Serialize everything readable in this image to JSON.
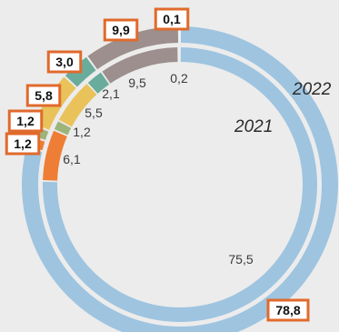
{
  "chart_data": {
    "type": "donut",
    "categories": [
      "blue",
      "orange",
      "olive-green",
      "yellow",
      "teal",
      "gray",
      "white"
    ],
    "series": [
      {
        "name": "2022",
        "values": [
          78.8,
          1.2,
          1.2,
          5.8,
          3.0,
          9.9,
          0.1
        ],
        "labels": [
          "78,8",
          "1,2",
          "1,2",
          "5,8",
          "3,0",
          "9,9",
          "0,1"
        ]
      },
      {
        "name": "2021",
        "values": [
          75.5,
          6.1,
          1.2,
          5.5,
          2.1,
          9.5,
          0.2
        ],
        "labels": [
          "75,5",
          "6,1",
          "1,2",
          "5,5",
          "2,1",
          "9,5",
          "0,2"
        ]
      }
    ],
    "colors": [
      "#9ec4e0",
      "#ee7e35",
      "#9db47b",
      "#e9c25a",
      "#6aac9c",
      "#9c8f8d",
      "#f4f4f4"
    ],
    "label_box_color": "#e06a2c",
    "legend": "none"
  }
}
